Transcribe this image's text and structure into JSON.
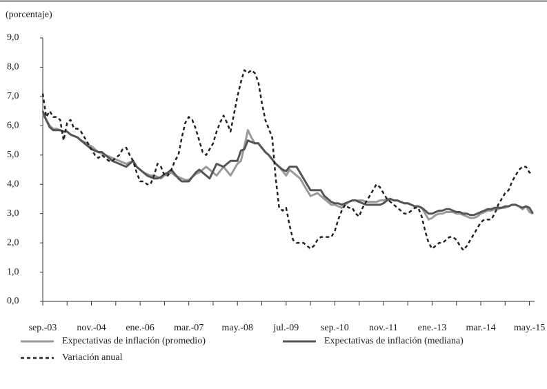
{
  "chart_data": {
    "type": "line",
    "y_label": "(porcentaje)",
    "categories": [
      "sep.-03",
      null,
      null,
      null,
      null,
      null,
      null,
      null,
      null,
      null,
      null,
      null,
      null,
      null,
      "nov.-04",
      null,
      null,
      null,
      null,
      null,
      null,
      null,
      null,
      null,
      null,
      null,
      null,
      null,
      "ene.-06",
      null,
      null,
      null,
      null,
      null,
      null,
      null,
      null,
      null,
      null,
      null,
      null,
      null,
      "mar.-07",
      null,
      null,
      null,
      null,
      null,
      null,
      null,
      null,
      null,
      null,
      null,
      null,
      null,
      "may.-08",
      null,
      null,
      null,
      null,
      null,
      null,
      null,
      null,
      null,
      null,
      null,
      null,
      null,
      "jul.-09",
      null,
      null,
      null,
      null,
      null,
      null,
      null,
      null,
      null,
      null,
      null,
      null,
      null,
      "sep.-10",
      null,
      null,
      null,
      null,
      null,
      null,
      null,
      null,
      null,
      null,
      null,
      null,
      null,
      "nov.-11",
      null,
      null,
      null,
      null,
      null,
      null,
      null,
      null,
      null,
      null,
      null,
      null,
      null,
      "ene.-13",
      null,
      null,
      null,
      null,
      null,
      null,
      null,
      null,
      null,
      null,
      null,
      null,
      null,
      "mar.-14",
      null,
      null,
      null,
      null,
      null,
      null,
      null,
      null,
      null,
      null,
      null,
      null,
      null,
      "may.-15",
      null
    ],
    "series": [
      {
        "name": "Expectativas de inflación (promedio)",
        "color": "#9a9a9a",
        "dash": "solid",
        "values": [
          6.4,
          6.2,
          6.0,
          5.9,
          5.9,
          5.85,
          5.8,
          5.8,
          5.7,
          5.65,
          5.6,
          5.5,
          5.45,
          5.35,
          5.3,
          5.2,
          5.1,
          5.05,
          5.0,
          4.95,
          4.9,
          4.85,
          4.8,
          4.75,
          4.7,
          4.75,
          4.8,
          4.6,
          4.5,
          4.4,
          4.35,
          4.3,
          4.3,
          4.25,
          4.2,
          4.3,
          4.35,
          4.4,
          4.3,
          4.25,
          4.2,
          4.15,
          4.15,
          4.25,
          4.35,
          4.4,
          4.5,
          4.6,
          4.5,
          4.4,
          4.3,
          4.45,
          4.6,
          4.45,
          4.3,
          4.5,
          4.7,
          4.8,
          5.3,
          5.85,
          5.6,
          5.4,
          5.4,
          5.25,
          5.1,
          5.0,
          4.85,
          4.7,
          4.6,
          4.45,
          4.3,
          4.5,
          4.4,
          4.3,
          4.2,
          4.0,
          3.8,
          3.6,
          3.65,
          3.7,
          3.6,
          3.5,
          3.4,
          3.3,
          3.3,
          3.25,
          3.2,
          3.3,
          3.4,
          3.45,
          3.45,
          3.45,
          3.45,
          3.4,
          3.4,
          3.4,
          3.4,
          3.45,
          3.45,
          3.5,
          3.5,
          3.45,
          3.45,
          3.4,
          3.35,
          3.35,
          3.3,
          3.25,
          3.25,
          3.2,
          3.0,
          2.8,
          2.85,
          2.95,
          3.0,
          3.0,
          3.05,
          3.05,
          3.05,
          3.0,
          3.0,
          2.95,
          2.9,
          2.85,
          2.85,
          2.9,
          3.0,
          3.05,
          3.1,
          3.1,
          3.15,
          3.15,
          3.2,
          3.2,
          3.25,
          3.3,
          3.3,
          3.25,
          3.15,
          3.25,
          3.05,
          3.0
        ]
      },
      {
        "name": "Expectativas de inflación (mediana)",
        "color": "#555555",
        "dash": "solid",
        "values": [
          6.5,
          6.2,
          5.95,
          5.85,
          5.85,
          5.85,
          5.8,
          5.8,
          5.7,
          5.65,
          5.6,
          5.5,
          5.4,
          5.3,
          5.2,
          5.15,
          5.1,
          5.1,
          5.0,
          4.9,
          4.8,
          4.75,
          4.7,
          4.65,
          4.6,
          4.7,
          4.8,
          4.6,
          4.5,
          4.4,
          4.3,
          4.25,
          4.2,
          4.2,
          4.25,
          4.35,
          4.4,
          4.5,
          4.35,
          4.2,
          4.1,
          4.1,
          4.1,
          4.25,
          4.4,
          4.5,
          4.4,
          4.3,
          4.2,
          4.45,
          4.7,
          4.65,
          4.6,
          4.7,
          4.8,
          4.8,
          4.8,
          5.15,
          5.2,
          5.5,
          5.45,
          5.4,
          5.4,
          5.25,
          5.1,
          5.0,
          4.85,
          4.7,
          4.6,
          4.5,
          4.45,
          4.6,
          4.6,
          4.6,
          4.4,
          4.2,
          4.0,
          3.8,
          3.8,
          3.8,
          3.8,
          3.6,
          3.5,
          3.4,
          3.35,
          3.35,
          3.3,
          3.35,
          3.4,
          3.45,
          3.45,
          3.4,
          3.35,
          3.3,
          3.3,
          3.3,
          3.3,
          3.3,
          3.35,
          3.45,
          3.5,
          3.45,
          3.45,
          3.4,
          3.35,
          3.35,
          3.3,
          3.25,
          3.25,
          3.2,
          3.1,
          3.0,
          3.0,
          3.05,
          3.1,
          3.1,
          3.15,
          3.15,
          3.1,
          3.05,
          3.05,
          3.0,
          3.0,
          2.95,
          2.95,
          3.0,
          3.05,
          3.1,
          3.15,
          3.15,
          3.2,
          3.2,
          3.2,
          3.25,
          3.25,
          3.3,
          3.3,
          3.25,
          3.2,
          3.25,
          3.2,
          3.0
        ]
      },
      {
        "name": "Variación anual",
        "color": "#222222",
        "dash": "dashed",
        "values": [
          7.1,
          6.3,
          6.5,
          6.3,
          6.3,
          6.2,
          5.5,
          6.1,
          6.2,
          5.9,
          5.9,
          5.8,
          5.6,
          5.4,
          5.2,
          5.0,
          4.9,
          5.0,
          4.9,
          4.8,
          4.8,
          4.9,
          5.0,
          5.2,
          5.25,
          5.0,
          4.8,
          4.4,
          4.1,
          4.1,
          4.0,
          4.0,
          4.3,
          4.7,
          4.6,
          4.3,
          4.3,
          4.5,
          4.8,
          5.0,
          5.6,
          6.1,
          6.3,
          6.2,
          5.9,
          5.5,
          5.1,
          5.0,
          5.2,
          5.4,
          5.8,
          6.1,
          6.35,
          6.1,
          5.8,
          6.4,
          7.0,
          7.5,
          7.9,
          7.8,
          7.9,
          7.8,
          7.5,
          6.8,
          6.2,
          5.9,
          5.6,
          4.2,
          3.2,
          3.1,
          3.2,
          2.6,
          2.1,
          2.0,
          2.0,
          2.0,
          1.9,
          1.8,
          1.9,
          2.1,
          2.2,
          2.2,
          2.2,
          2.2,
          2.4,
          2.8,
          3.1,
          3.3,
          3.2,
          3.2,
          3.0,
          2.9,
          3.2,
          3.4,
          3.6,
          3.8,
          4.0,
          3.9,
          3.7,
          3.5,
          3.4,
          3.3,
          3.2,
          3.1,
          3.0,
          3.0,
          3.1,
          3.2,
          3.2,
          2.9,
          2.4,
          2.0,
          1.8,
          1.9,
          2.0,
          2.0,
          2.1,
          2.2,
          2.2,
          2.1,
          1.9,
          1.75,
          1.9,
          2.1,
          2.3,
          2.5,
          2.7,
          2.8,
          2.8,
          2.8,
          3.0,
          3.3,
          3.5,
          3.7,
          3.8,
          4.1,
          4.3,
          4.5,
          4.6,
          4.6,
          4.4,
          4.4
        ]
      }
    ],
    "ylim": [
      0,
      9
    ],
    "yticks": [
      {
        "value": 0,
        "label": "0,0"
      },
      {
        "value": 1,
        "label": "1,0"
      },
      {
        "value": 2,
        "label": "2,0"
      },
      {
        "value": 3,
        "label": "3,0"
      },
      {
        "value": 4,
        "label": "4,0"
      },
      {
        "value": 5,
        "label": "5,0"
      },
      {
        "value": 6,
        "label": "6,0"
      },
      {
        "value": 7,
        "label": "7,0"
      },
      {
        "value": 8,
        "label": "8,0"
      },
      {
        "value": 9,
        "label": "9,0"
      }
    ],
    "grid": false
  }
}
